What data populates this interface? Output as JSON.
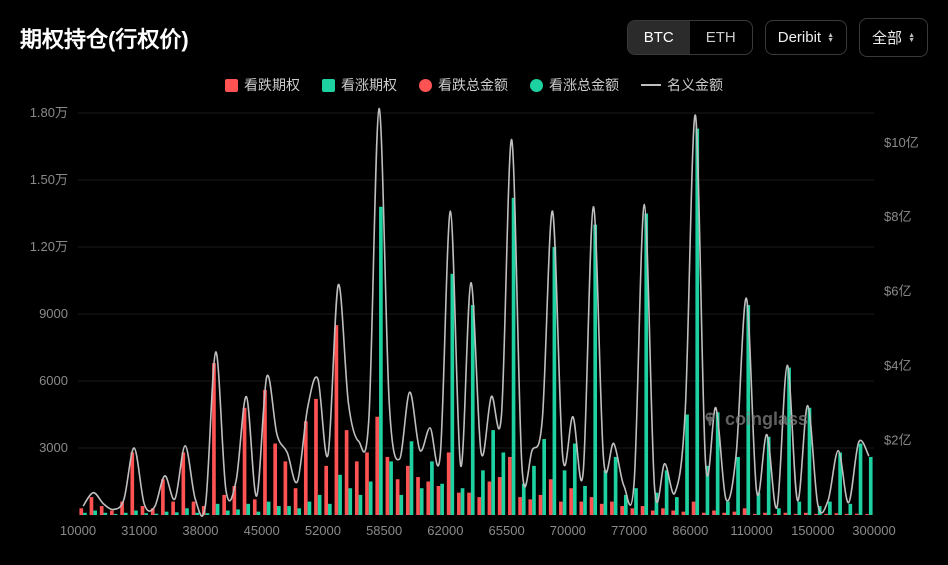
{
  "title": "期权持仓(行权价)",
  "asset_toggle": {
    "options": [
      "BTC",
      "ETH"
    ],
    "active": "BTC"
  },
  "exchange_dropdown": {
    "label": "Deribit"
  },
  "scope_dropdown": {
    "label": "全部"
  },
  "legend": [
    {
      "label": "看跌期权",
      "shape": "box",
      "color": "#ff5252"
    },
    {
      "label": "看涨期权",
      "shape": "box",
      "color": "#1dd1a1"
    },
    {
      "label": "看跌总金额",
      "shape": "round",
      "color": "#ff5252"
    },
    {
      "label": "看涨总金额",
      "shape": "round",
      "color": "#1dd1a1"
    },
    {
      "label": "名义金额",
      "shape": "line",
      "color": "#bfbfbf"
    }
  ],
  "watermark": "coinglass",
  "chart": {
    "type": "bar+line",
    "background_color": "#000000",
    "grid_color": "#1a1a1a",
    "axis_font_color": "#8a8a8a",
    "axis_fontsize": 13,
    "y_left": {
      "ticks": [
        0,
        3000,
        6000,
        9000,
        12000,
        15000,
        18000
      ],
      "labels": [
        "",
        "3000",
        "6000",
        "9000",
        "1.20万",
        "1.50万",
        "1.80万"
      ],
      "max": 18000
    },
    "y_right": {
      "ticks": [
        0,
        2,
        4,
        6,
        8,
        10
      ],
      "labels": [
        "",
        "$2亿",
        "$4亿",
        "$6亿",
        "$8亿",
        "$10亿"
      ],
      "max": 10.8
    },
    "x_labels": [
      "10000",
      "31000",
      "38000",
      "45000",
      "52000",
      "58500",
      "62000",
      "65500",
      "70000",
      "77000",
      "86000",
      "110000",
      "150000",
      "300000"
    ],
    "series_colors": {
      "put": "#ff5252",
      "call": "#1dd1a1",
      "line": "#bfbfbf"
    },
    "bar_width_ratio": 0.72,
    "line_width": 1.6,
    "bars": [
      {
        "put": 300,
        "call": 100
      },
      {
        "put": 800,
        "call": 200
      },
      {
        "put": 400,
        "call": 100
      },
      {
        "put": 200,
        "call": 50
      },
      {
        "put": 600,
        "call": 100
      },
      {
        "put": 2800,
        "call": 200
      },
      {
        "put": 400,
        "call": 80
      },
      {
        "put": 300,
        "call": 60
      },
      {
        "put": 1600,
        "call": 150
      },
      {
        "put": 600,
        "call": 120
      },
      {
        "put": 2800,
        "call": 300
      },
      {
        "put": 600,
        "call": 100
      },
      {
        "put": 400,
        "call": 80
      },
      {
        "put": 6800,
        "call": 500
      },
      {
        "put": 900,
        "call": 200
      },
      {
        "put": 1300,
        "call": 250
      },
      {
        "put": 4800,
        "call": 500
      },
      {
        "put": 700,
        "call": 150
      },
      {
        "put": 5600,
        "call": 600
      },
      {
        "put": 3200,
        "call": 400
      },
      {
        "put": 2400,
        "call": 400
      },
      {
        "put": 1200,
        "call": 300
      },
      {
        "put": 4200,
        "call": 600
      },
      {
        "put": 5200,
        "call": 900
      },
      {
        "put": 2200,
        "call": 500
      },
      {
        "put": 8500,
        "call": 1800
      },
      {
        "put": 3800,
        "call": 1200
      },
      {
        "put": 2400,
        "call": 900
      },
      {
        "put": 2800,
        "call": 1500
      },
      {
        "put": 4400,
        "call": 13800
      },
      {
        "put": 2600,
        "call": 2400
      },
      {
        "put": 1600,
        "call": 900
      },
      {
        "put": 2200,
        "call": 3300
      },
      {
        "put": 1700,
        "call": 1200
      },
      {
        "put": 1500,
        "call": 2400
      },
      {
        "put": 1300,
        "call": 1400
      },
      {
        "put": 2800,
        "call": 10800
      },
      {
        "put": 1000,
        "call": 1200
      },
      {
        "put": 1000,
        "call": 9400
      },
      {
        "put": 800,
        "call": 2000
      },
      {
        "put": 1500,
        "call": 3800
      },
      {
        "put": 1700,
        "call": 2800
      },
      {
        "put": 2600,
        "call": 14200
      },
      {
        "put": 800,
        "call": 1400
      },
      {
        "put": 700,
        "call": 2200
      },
      {
        "put": 900,
        "call": 3400
      },
      {
        "put": 1600,
        "call": 12000
      },
      {
        "put": 600,
        "call": 2000
      },
      {
        "put": 1200,
        "call": 3200
      },
      {
        "put": 600,
        "call": 1300
      },
      {
        "put": 800,
        "call": 13000
      },
      {
        "put": 500,
        "call": 2000
      },
      {
        "put": 600,
        "call": 2600
      },
      {
        "put": 400,
        "call": 900
      },
      {
        "put": 300,
        "call": 1200
      },
      {
        "put": 400,
        "call": 13500
      },
      {
        "put": 200,
        "call": 1000
      },
      {
        "put": 300,
        "call": 2000
      },
      {
        "put": 200,
        "call": 800
      },
      {
        "put": 150,
        "call": 4500
      },
      {
        "put": 600,
        "call": 17300
      },
      {
        "put": 100,
        "call": 2200
      },
      {
        "put": 200,
        "call": 4600
      },
      {
        "put": 100,
        "call": 600
      },
      {
        "put": 150,
        "call": 2600
      },
      {
        "put": 300,
        "call": 9400
      },
      {
        "put": 50,
        "call": 1000
      },
      {
        "put": 100,
        "call": 3500
      },
      {
        "put": 50,
        "call": 300
      },
      {
        "put": 100,
        "call": 6600
      },
      {
        "put": 50,
        "call": 600
      },
      {
        "put": 100,
        "call": 4800
      },
      {
        "put": 50,
        "call": 400
      },
      {
        "put": 50,
        "call": 600
      },
      {
        "put": 80,
        "call": 2800
      },
      {
        "put": 50,
        "call": 500
      },
      {
        "put": 60,
        "call": 3200
      },
      {
        "put": 40,
        "call": 2600
      }
    ]
  }
}
